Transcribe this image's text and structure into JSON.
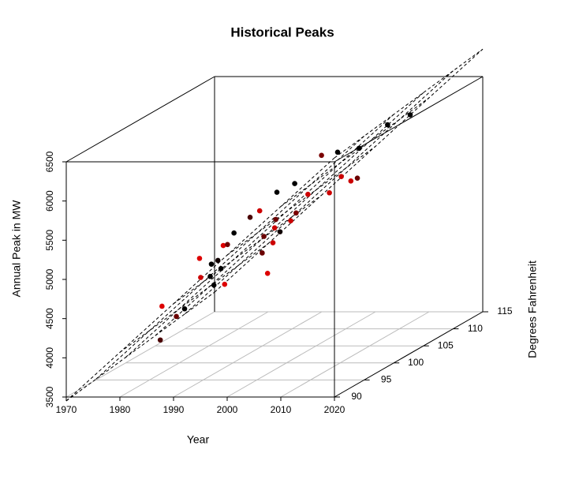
{
  "chart_data": {
    "type": "scatter3d",
    "title": "Historical Peaks",
    "xlabel": "Year",
    "ylabel": "Degrees Fahrenheit",
    "zlabel": "Annual Peak in MW",
    "xlim": [
      1970,
      2020
    ],
    "xticks": [
      1970,
      1980,
      1990,
      2000,
      2010,
      2020
    ],
    "ylim": [
      90,
      115
    ],
    "yticks": [
      90,
      95,
      100,
      105,
      110,
      115
    ],
    "zlim": [
      3500,
      6500
    ],
    "zticks": [
      3500,
      4000,
      4500,
      5000,
      5500,
      6000,
      6500
    ],
    "grid": true,
    "x": [
      1982,
      1979,
      1985,
      1981,
      1986,
      1984,
      1988,
      1992,
      1986,
      1985,
      1990,
      1986,
      1989,
      1994,
      1988,
      1991,
      1995,
      1998,
      2001,
      2002,
      2000,
      1998,
      2003,
      1996,
      2001,
      2003,
      1996,
      2004,
      2004,
      2001,
      2008,
      2004,
      2008,
      2012,
      2008,
      2011,
      2010,
      2012
    ],
    "y": [
      95,
      98,
      95,
      100,
      98,
      100,
      98,
      95,
      100,
      102,
      98,
      102,
      100,
      95,
      102,
      102,
      100,
      98,
      95,
      95,
      98,
      100,
      95,
      102,
      98,
      98,
      105,
      98,
      100,
      105,
      100,
      105,
      102,
      100,
      105,
      102,
      108,
      110
    ],
    "z": [
      4010,
      4310,
      4310,
      4190,
      4920,
      4590,
      4690,
      4710,
      4760,
      4720,
      4790,
      4910,
      5010,
      4720,
      5070,
      5270,
      5440,
      5200,
      5120,
      4860,
      5310,
      5330,
      5250,
      5590,
      5260,
      5400,
      5570,
      5500,
      5650,
      5930,
      5670,
      5970,
      5790,
      5820,
      6020,
      5770,
      6190,
      6230
    ],
    "colors": [
      "#4a0000",
      "#dd0000",
      "#6a0000",
      "#000000",
      "#dd0000",
      "#cc0000",
      "#000000",
      "#000000",
      "#000000",
      "#100000",
      "#000000",
      "#dd0000",
      "#700000",
      "#dd0000",
      "#000000",
      "#4a0000",
      "#cc0000",
      "#6a0000",
      "#6a0000",
      "#dd0000",
      "#cc0000",
      "#6a0000",
      "#cc0000",
      "#000000",
      "#100000",
      "#cc0000",
      "#000000",
      "#7a0000",
      "#cc0000",
      "#7a0000",
      "#cc0000",
      "#000000",
      "#cc0000",
      "#cc0000",
      "#000000",
      "#6a0000",
      "#000000",
      "#000000"
    ],
    "plane": {
      "intercept": 3450,
      "x_slope": 62,
      "y_slope": 12
    }
  }
}
